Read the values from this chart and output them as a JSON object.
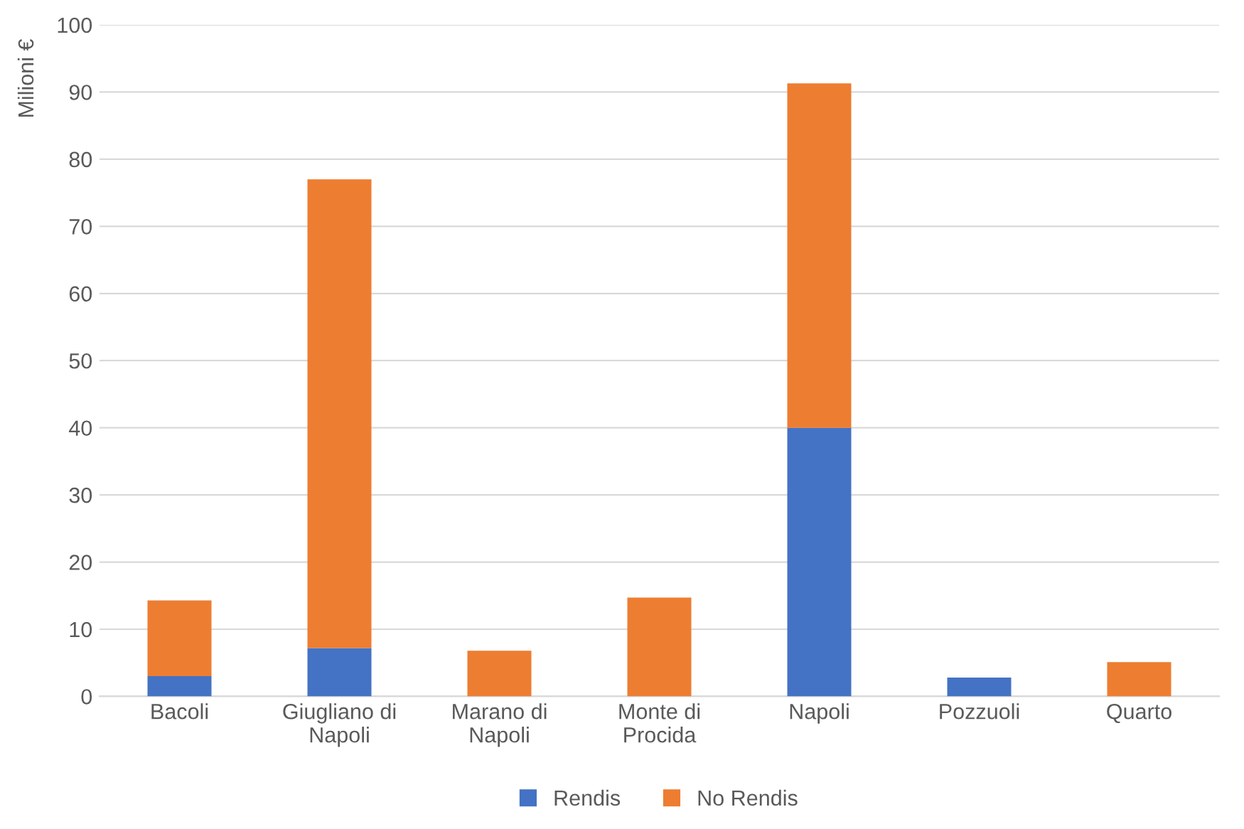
{
  "chart_data": {
    "type": "bar",
    "ylabel": "Milioni €",
    "categories": [
      "Bacoli",
      "Giugliano di\nNapoli",
      "Marano di\nNapoli",
      "Monte di\nProcida",
      "Napoli",
      "Pozzuoli",
      "Quarto"
    ],
    "stacked": true,
    "series": [
      {
        "name": "Rendis",
        "color": "#4472c4",
        "values": [
          3.0,
          7.2,
          0,
          0,
          40,
          2.8,
          0
        ]
      },
      {
        "name": "No Rendis",
        "color": "#ed7d31",
        "values": [
          11.3,
          69.8,
          6.8,
          14.7,
          51.3,
          0,
          5.1
        ]
      }
    ],
    "ylim": [
      0,
      100
    ],
    "yticks": [
      0,
      10,
      20,
      30,
      40,
      50,
      60,
      70,
      80,
      90,
      100
    ],
    "grid": "y",
    "legend": "bottom"
  }
}
